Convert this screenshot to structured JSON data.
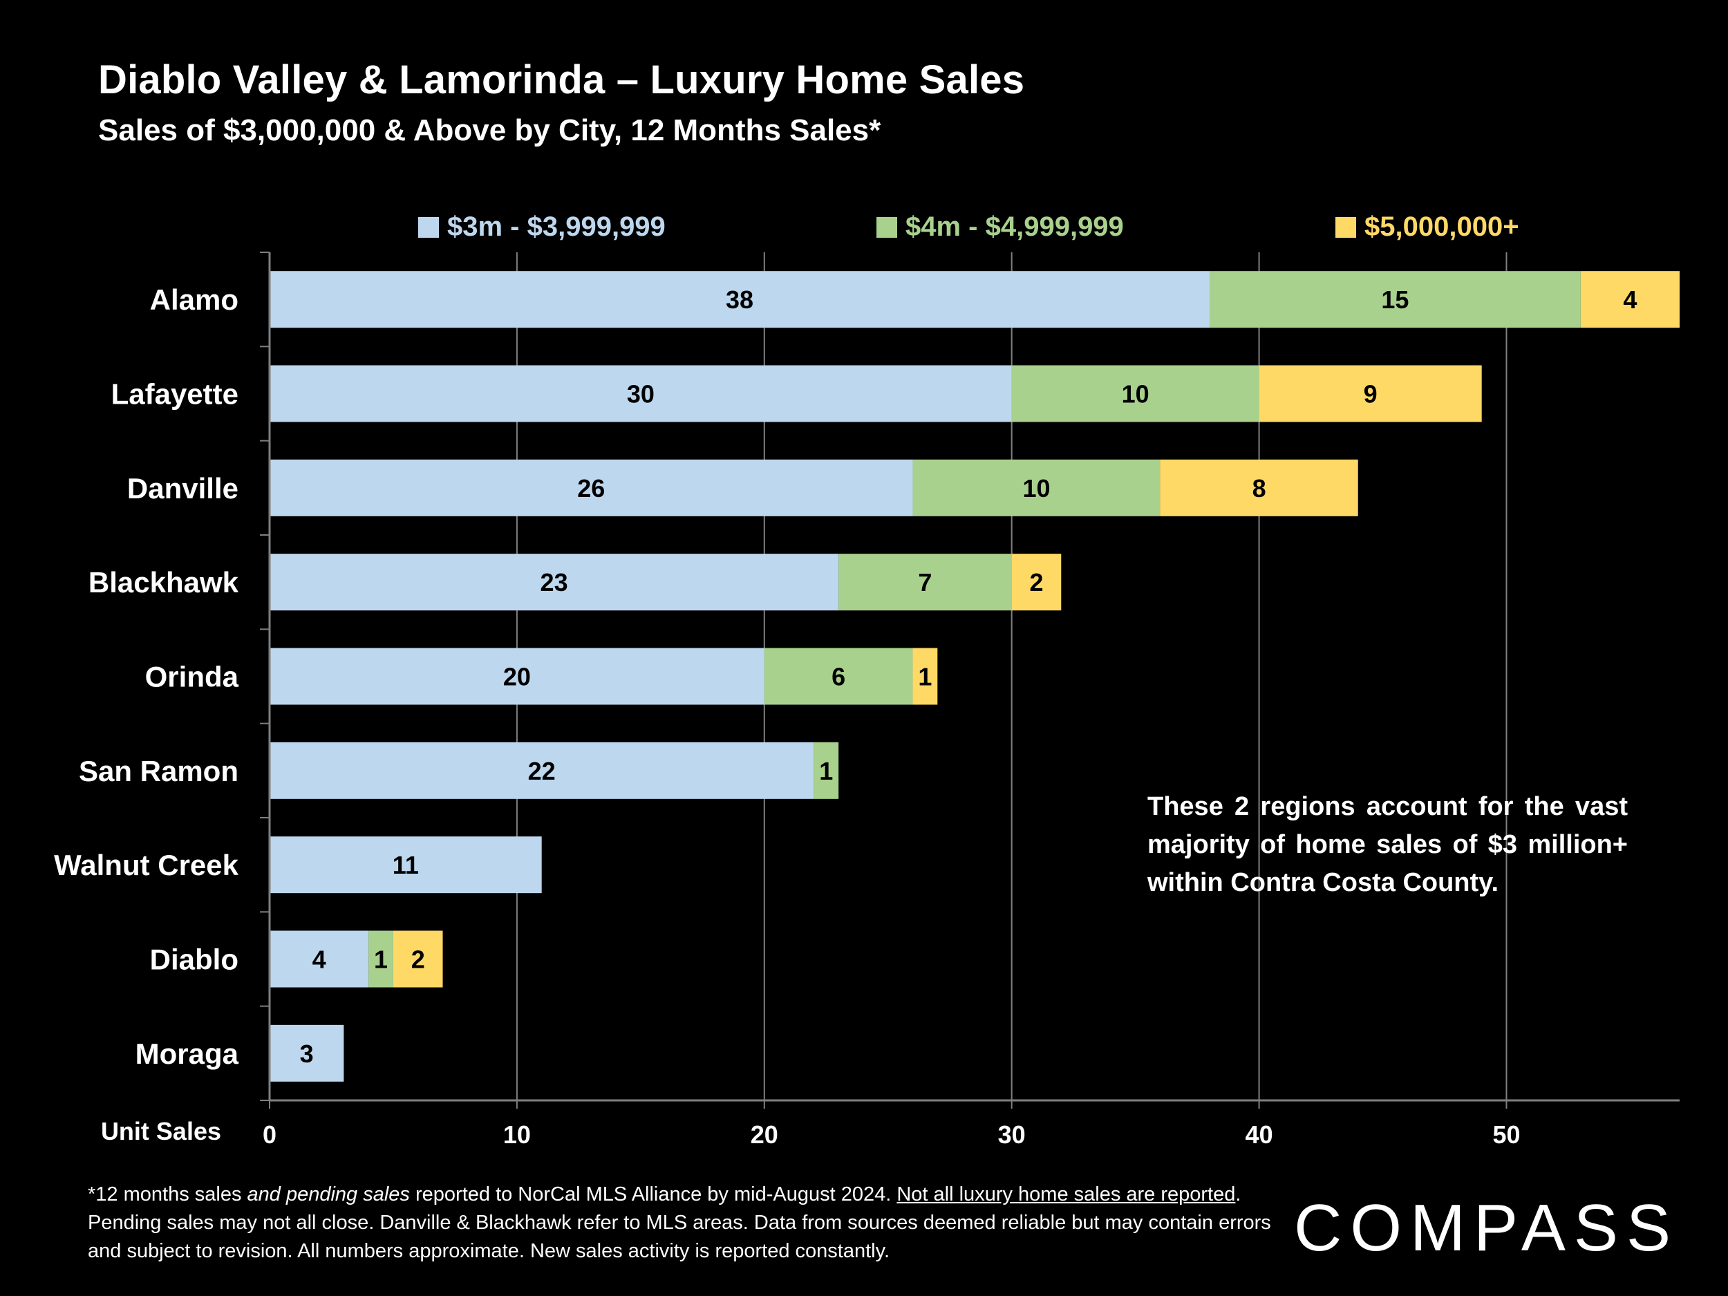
{
  "header": {
    "title": "Diablo Valley & Lamorinda – Luxury Home Sales",
    "subtitle": "Sales of $3,000,000 & Above by City, 12 Months Sales*"
  },
  "chart_data": {
    "type": "bar",
    "orientation": "horizontal",
    "stacked": true,
    "title": "Diablo Valley & Lamorinda – Luxury Home Sales",
    "xlabel": "Unit Sales",
    "ylabel": "",
    "xlim": [
      0,
      57
    ],
    "xticks": [
      0,
      10,
      20,
      30,
      40,
      50
    ],
    "grid": true,
    "legend_position": "top",
    "categories": [
      "Alamo",
      "Lafayette",
      "Danville",
      "Blackhawk",
      "Orinda",
      "San Ramon",
      "Walnut Creek",
      "Diablo",
      "Moraga"
    ],
    "series": [
      {
        "name": "$3m - $3,999,999",
        "color": "#BDD7EE",
        "values": [
          38,
          30,
          26,
          23,
          20,
          22,
          11,
          4,
          3
        ]
      },
      {
        "name": "$4m - $4,999,999",
        "color": "#A9D18E",
        "values": [
          15,
          10,
          10,
          7,
          6,
          1,
          null,
          1,
          null
        ]
      },
      {
        "name": "$5,000,000+",
        "color": "#FFD966",
        "values": [
          4,
          9,
          8,
          2,
          1,
          null,
          null,
          2,
          null
        ]
      }
    ]
  },
  "annotation": "These 2 regions account for the vast majority of home sales of $3 million+ within Contra Costa County.",
  "footnote": {
    "part1": "*12 months sales ",
    "part2_italic": "and pending sales",
    "part3": " reported to NorCal MLS Alliance by mid-August 2024. ",
    "part4_underlined": "Not all luxury home sales are reported",
    "part5": ". Pending sales may not all close. Danville & Blackhawk refer to MLS areas. Data from sources deemed reliable but may contain errors and subject to revision. All numbers approximate. New sales activity is reported constantly."
  },
  "logo": "COMPASS",
  "colors": {
    "background": "#000000",
    "series1": "#BDD7EE",
    "series2": "#A9D18E",
    "series3": "#FFD966",
    "gridline": "#7F7F7F"
  }
}
